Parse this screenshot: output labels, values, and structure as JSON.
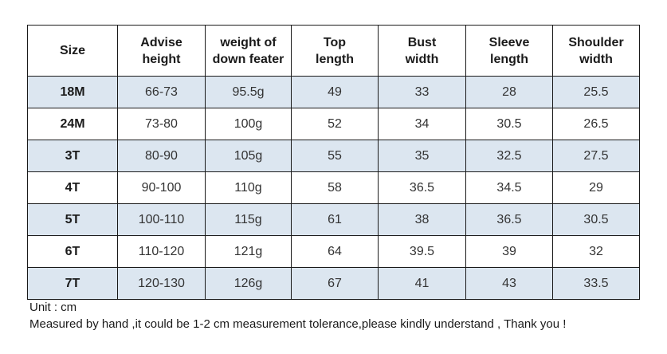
{
  "table": {
    "headers": [
      [
        "Size",
        ""
      ],
      [
        "Advise",
        "height"
      ],
      [
        "weight of",
        "down feater"
      ],
      [
        "Top",
        "length"
      ],
      [
        "Bust",
        "width"
      ],
      [
        "Sleeve",
        "length"
      ],
      [
        "Shoulder",
        "width"
      ]
    ],
    "rows": [
      [
        "18M",
        "66-73",
        "95.5g",
        "49",
        "33",
        "28",
        "25.5"
      ],
      [
        "24M",
        "73-80",
        "100g",
        "52",
        "34",
        "30.5",
        "26.5"
      ],
      [
        "3T",
        "80-90",
        "105g",
        "55",
        "35",
        "32.5",
        "27.5"
      ],
      [
        "4T",
        "90-100",
        "110g",
        "58",
        "36.5",
        "34.5",
        "29"
      ],
      [
        "5T",
        "100-110",
        "115g",
        "61",
        "38",
        "36.5",
        "30.5"
      ],
      [
        "6T",
        "110-120",
        "121g",
        "64",
        "39.5",
        "39",
        "32"
      ],
      [
        "7T",
        "120-130",
        "126g",
        "67",
        "41",
        "43",
        "33.5"
      ]
    ],
    "row_shading": [
      "shaded",
      "plain",
      "shaded",
      "plain",
      "shaded",
      "plain",
      "shaded"
    ],
    "shade_color": "#dce6f0"
  },
  "notes": {
    "unit": "Unit : cm",
    "tolerance": "Measured by hand ,it could be 1-2 cm measurement tolerance,please kindly understand , Thank you !"
  }
}
